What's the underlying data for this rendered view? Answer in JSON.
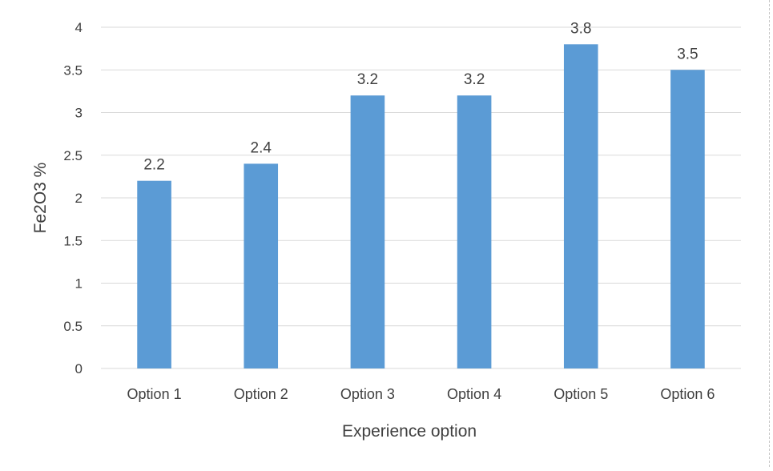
{
  "chart_data": {
    "type": "bar",
    "categories": [
      "Option 1",
      "Option 2",
      "Option 3",
      "Option 4",
      "Option 5",
      "Option 6"
    ],
    "values": [
      2.2,
      2.4,
      3.2,
      3.2,
      3.8,
      3.5
    ],
    "data_labels": [
      "2.2",
      "2.4",
      "3.2",
      "3.2",
      "3.8",
      "3.5"
    ],
    "title": "",
    "xlabel": "Experience option",
    "ylabel": "Fe2O3 %",
    "ylim": [
      0,
      4
    ],
    "yticks": [
      0,
      0.5,
      1,
      1.5,
      2,
      2.5,
      3,
      3.5,
      4
    ],
    "ytick_labels": [
      "0",
      "0.5",
      "1",
      "1.5",
      "2",
      "2.5",
      "3",
      "3.5",
      "4"
    ],
    "grid": true,
    "legend": "none",
    "bar_color": "#5b9bd5"
  }
}
